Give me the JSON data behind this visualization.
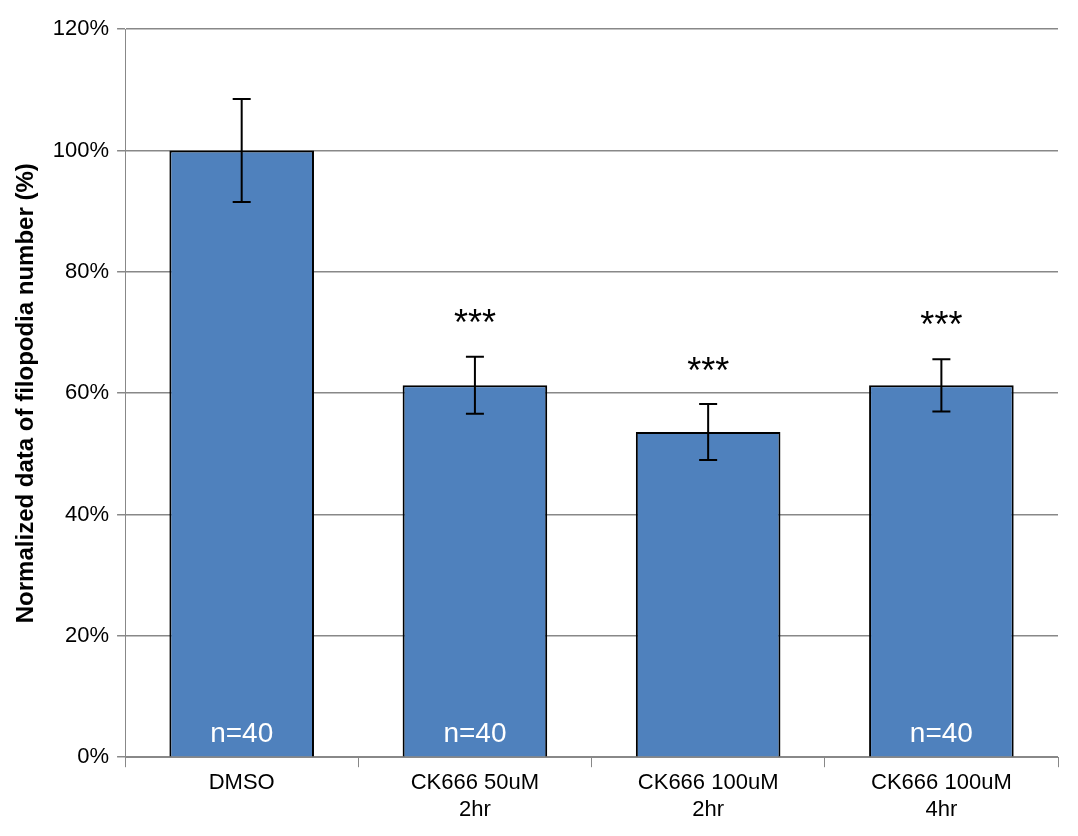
{
  "chart_data": {
    "type": "bar",
    "ylabel": "Normalized data of filopodia number (%)",
    "categories": [
      "DMSO",
      "CK666 50uM\n2hr",
      "CK666 100uM\n2hr",
      "CK666 100uM\n4hr"
    ],
    "values": [
      100,
      61.3,
      53.6,
      61.3
    ],
    "errors": [
      8.5,
      4.7,
      4.6,
      4.3
    ],
    "color": "#4f81bd",
    "ylim": [
      0,
      120
    ],
    "yticks": [
      {
        "value": 0,
        "label": "0%"
      },
      {
        "value": 20,
        "label": "20%"
      },
      {
        "value": 40,
        "label": "40%"
      },
      {
        "value": 60,
        "label": "60%"
      },
      {
        "value": 80,
        "label": "80%"
      },
      {
        "value": 100,
        "label": "100%"
      },
      {
        "value": 120,
        "label": "120%"
      }
    ],
    "grid": "y",
    "annotations": [
      {
        "text": "***",
        "x": "CK666 50uM\n2hr",
        "y": 66
      },
      {
        "text": "***",
        "x": "CK666 100uM\n2hr",
        "y": 58
      },
      {
        "text": "***",
        "x": "CK666 100uM\n4hr",
        "y": 65.6
      },
      "n=40",
      "n=40",
      "n=40"
    ]
  }
}
